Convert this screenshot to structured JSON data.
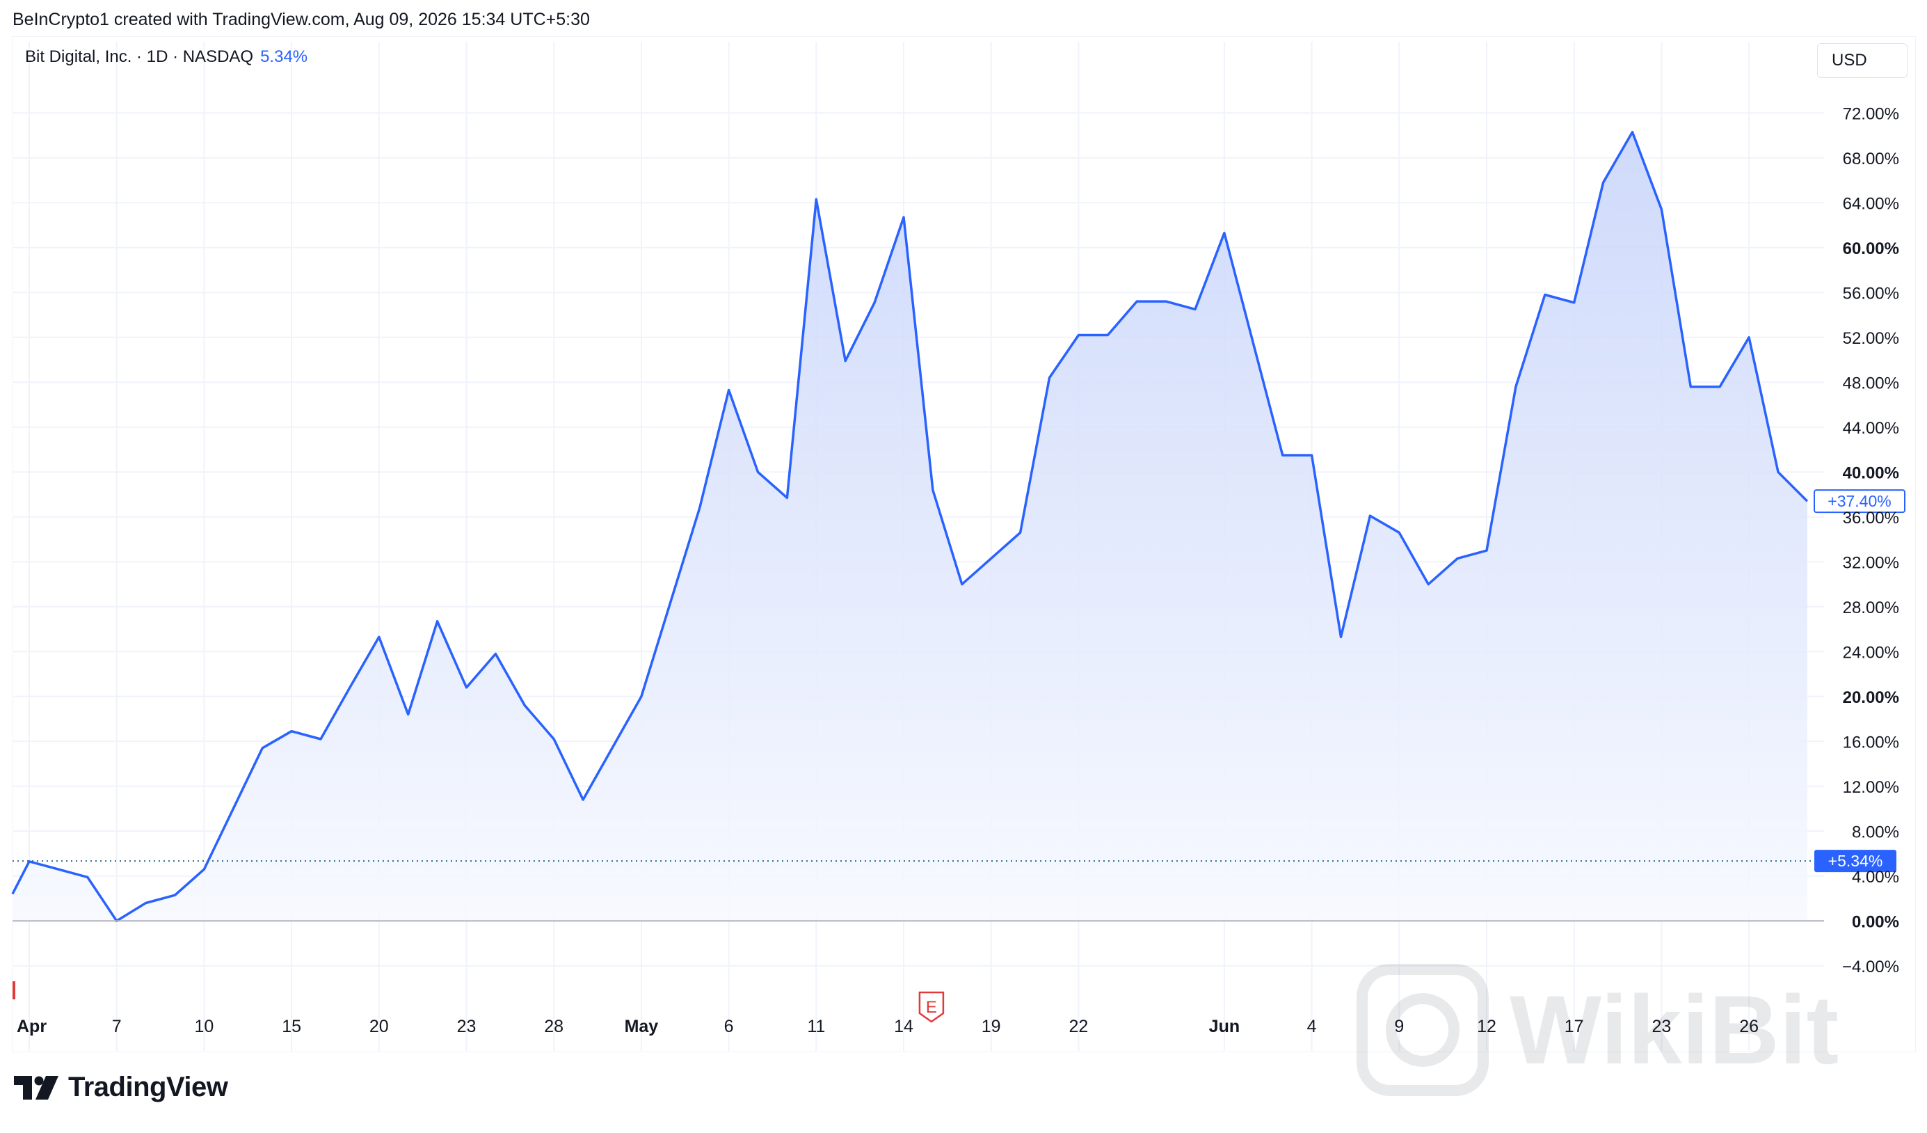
{
  "header": {
    "credit": "BeInCrypto1 created with TradingView.com, Aug 09, 2026 15:34 UTC+5:30"
  },
  "legend": {
    "symbol": "Bit Digital, Inc. · 1D · NASDAQ",
    "change": "5.34%"
  },
  "currency": "USD",
  "logo": {
    "text": "TradingView"
  },
  "watermark": {
    "text": "WikiBit"
  },
  "colors": {
    "line": "#2962ff",
    "fill_top": "#c7d4fa",
    "fill_bottom": "#f7f9ff",
    "grid": "#f0f3fa",
    "text": "#131722",
    "earnings": "#e03a3a"
  },
  "chart_data": {
    "type": "area",
    "ylim": [
      -6,
      74
    ],
    "y_ticks": [
      {
        "value": 72,
        "label": "72.00%",
        "bold": false
      },
      {
        "value": 68,
        "label": "68.00%",
        "bold": false
      },
      {
        "value": 64,
        "label": "64.00%",
        "bold": false
      },
      {
        "value": 60,
        "label": "60.00%",
        "bold": true
      },
      {
        "value": 56,
        "label": "56.00%",
        "bold": false
      },
      {
        "value": 52,
        "label": "52.00%",
        "bold": false
      },
      {
        "value": 48,
        "label": "48.00%",
        "bold": false
      },
      {
        "value": 44,
        "label": "44.00%",
        "bold": false
      },
      {
        "value": 40,
        "label": "40.00%",
        "bold": true
      },
      {
        "value": 36,
        "label": "36.00%",
        "bold": false
      },
      {
        "value": 32,
        "label": "32.00%",
        "bold": false
      },
      {
        "value": 28,
        "label": "28.00%",
        "bold": false
      },
      {
        "value": 24,
        "label": "24.00%",
        "bold": false
      },
      {
        "value": 20,
        "label": "20.00%",
        "bold": true
      },
      {
        "value": 16,
        "label": "16.00%",
        "bold": false
      },
      {
        "value": 12,
        "label": "12.00%",
        "bold": false
      },
      {
        "value": 8,
        "label": "8.00%",
        "bold": false
      },
      {
        "value": 4,
        "label": "4.00%",
        "bold": false
      },
      {
        "value": 0,
        "label": "0.00%",
        "bold": true
      },
      {
        "value": -4,
        "label": "−4.00%",
        "bold": false
      }
    ],
    "x_ticks": [
      {
        "index": 0,
        "label": "Apr",
        "bold": true
      },
      {
        "index": 3,
        "label": "7",
        "bold": false
      },
      {
        "index": 6,
        "label": "10",
        "bold": false
      },
      {
        "index": 9,
        "label": "15",
        "bold": false
      },
      {
        "index": 12,
        "label": "20",
        "bold": false
      },
      {
        "index": 15,
        "label": "23",
        "bold": false
      },
      {
        "index": 18,
        "label": "28",
        "bold": false
      },
      {
        "index": 21,
        "label": "May",
        "bold": true
      },
      {
        "index": 24,
        "label": "6",
        "bold": false
      },
      {
        "index": 27,
        "label": "11",
        "bold": false
      },
      {
        "index": 30,
        "label": "14",
        "bold": false
      },
      {
        "index": 33,
        "label": "19",
        "bold": false
      },
      {
        "index": 36,
        "label": "22",
        "bold": false
      },
      {
        "index": 41,
        "label": "Jun",
        "bold": true
      },
      {
        "index": 44,
        "label": "4",
        "bold": false
      },
      {
        "index": 47,
        "label": "9",
        "bold": false
      },
      {
        "index": 50,
        "label": "12",
        "bold": false
      },
      {
        "index": 53,
        "label": "17",
        "bold": false
      },
      {
        "index": 56,
        "label": "23",
        "bold": false
      },
      {
        "index": 59,
        "label": "26",
        "bold": false
      }
    ],
    "series": [
      {
        "values": [
          5.3,
          4.6,
          3.9,
          0.0,
          1.6,
          2.3,
          4.6,
          10.0,
          15.4,
          16.9,
          16.2,
          20.8,
          25.3,
          18.4,
          26.7,
          20.8,
          23.8,
          19.2,
          16.2,
          10.8,
          15.4,
          20.0,
          28.4,
          36.8,
          47.3,
          40.0,
          37.7,
          64.3,
          49.9,
          55.1,
          62.7,
          38.4,
          30.0,
          32.3,
          34.6,
          48.4,
          52.2,
          52.2,
          55.2,
          55.2,
          54.5,
          61.3,
          51.4,
          41.5,
          41.5,
          25.3,
          36.1,
          34.6,
          30.0,
          32.3,
          33.0,
          47.6,
          55.8,
          55.1,
          65.8,
          70.3,
          63.4,
          47.6,
          47.6,
          52.0,
          40.0,
          37.4
        ]
      }
    ],
    "start_value": 2.4,
    "reference": {
      "value": 5.34,
      "label": "+5.34%"
    },
    "last": {
      "value": 37.4,
      "label": "+37.40%"
    },
    "earnings_marker": {
      "index": 31,
      "label": "E"
    }
  }
}
